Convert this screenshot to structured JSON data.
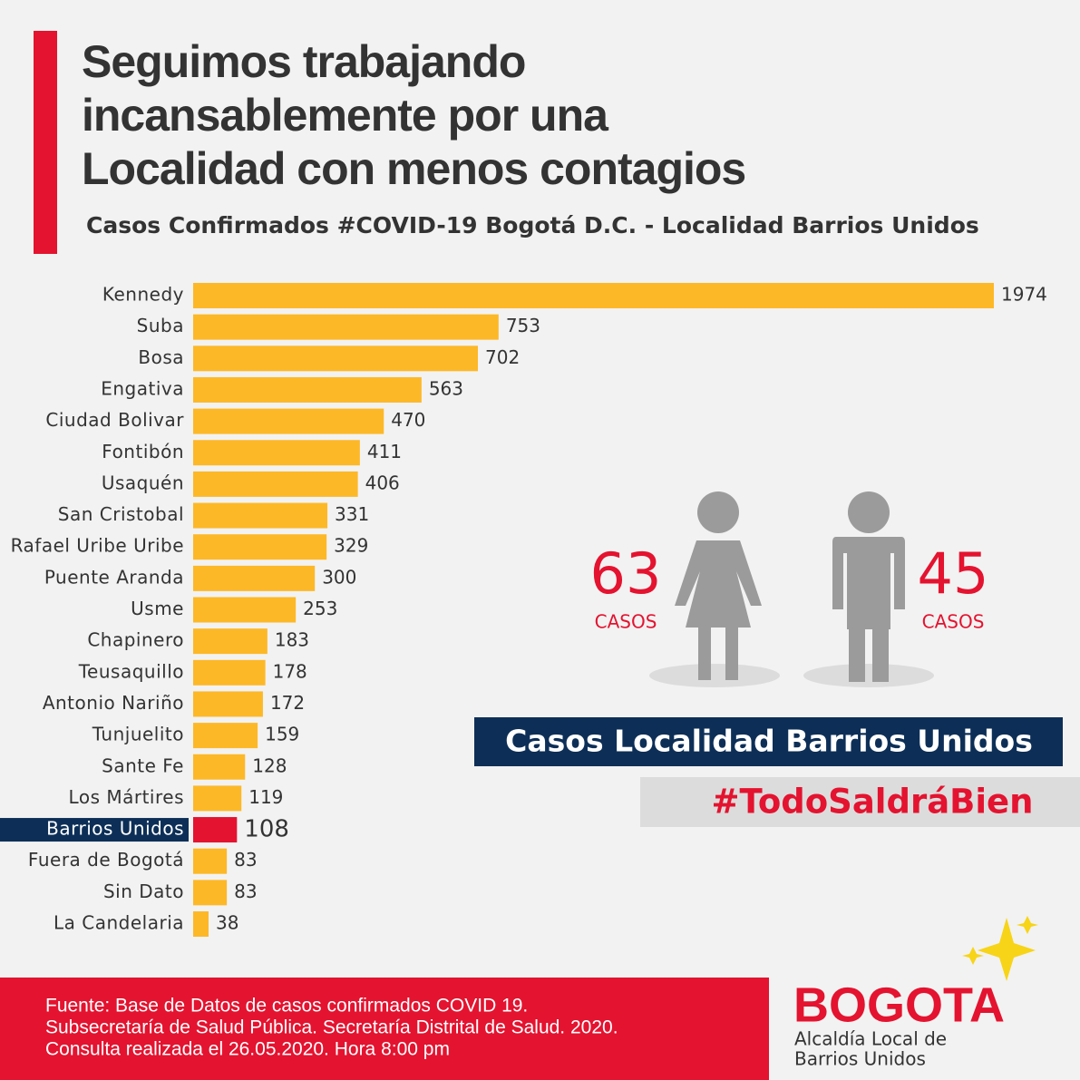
{
  "chart_data": {
    "type": "hbar",
    "title": [
      "Seguimos trabajando",
      "incansablemente por una",
      "Localidad con menos contagios"
    ],
    "subtitle": "Casos Confirmados #COVID-19 Bogotá D.C. - Localidad Barrios Unidos",
    "categories": [
      "Kennedy",
      "Suba",
      "Bosa",
      "Engativa",
      "Ciudad Bolivar",
      "Fontibón",
      "Usaquén",
      "San Cristobal",
      "Rafael Uribe Uribe",
      "Puente Aranda",
      "Usme",
      "Chapinero",
      "Teusaquillo",
      "Antonio Nariño",
      "Tunjuelito",
      "Sante Fe",
      "Los Mártires",
      "Barrios Unidos",
      "Fuera de Bogotá",
      "Sin Dato",
      "La Candelaria"
    ],
    "values": [
      1974,
      753,
      702,
      563,
      470,
      411,
      406,
      331,
      329,
      300,
      253,
      183,
      178,
      172,
      159,
      128,
      119,
      108,
      83,
      83,
      38
    ],
    "color": "#fdb827",
    "highlight": {
      "index": 17,
      "color": "#e4132f",
      "label_background": "#0d2f57"
    }
  },
  "gender_cases": {
    "female": {
      "value": 63,
      "label": "CASOS"
    },
    "male": {
      "value": 45,
      "label": "CASOS"
    }
  },
  "banner": "Casos Localidad Barrios Unidos",
  "hashtag": "#TodoSaldráBien",
  "footer": [
    "Fuente: Base de Datos de casos confirmados COVID 19.",
    "Subsecretaría de Salud Pública. Secretaría Distrital de Salud. 2020.",
    "Consulta realizada el 26.05.2020. Hora 8:00 pm"
  ],
  "logo": {
    "wordmark": "BOGOTA",
    "lines": [
      "Alcaldía Local de",
      "Barrios Unidos"
    ]
  }
}
